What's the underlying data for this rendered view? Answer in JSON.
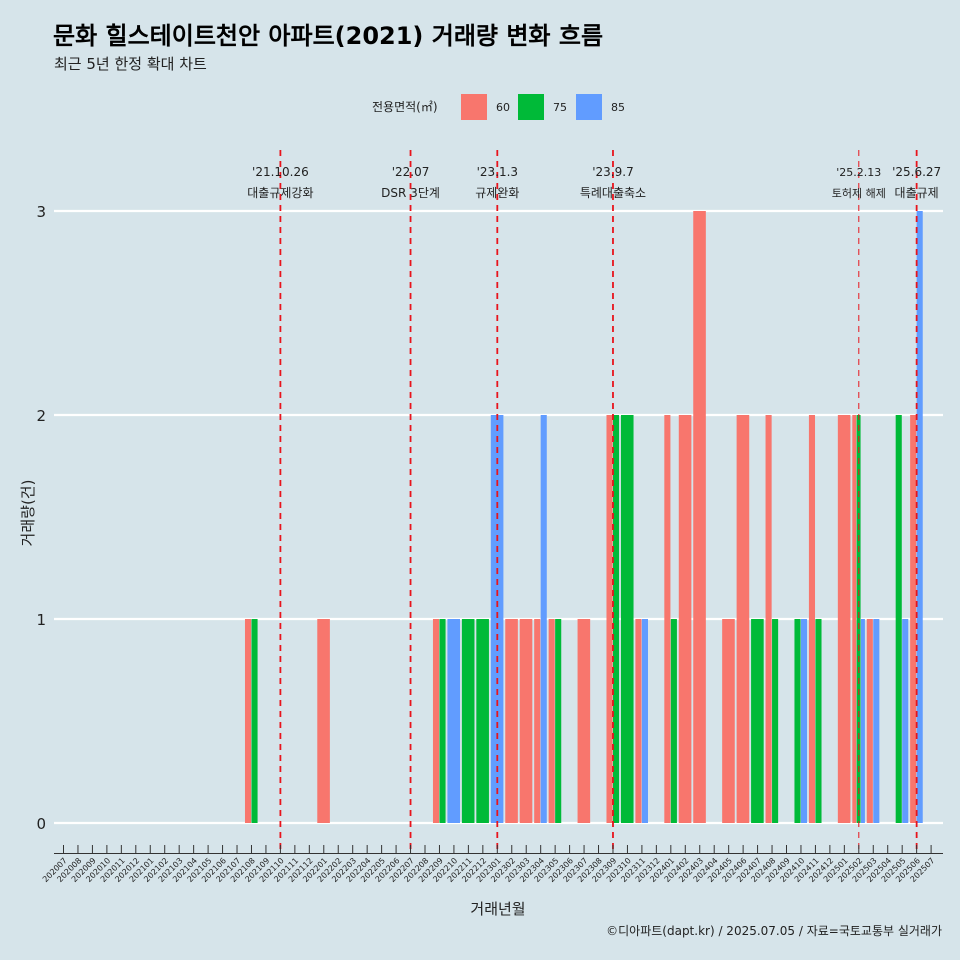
{
  "chart_data": {
    "type": "bar",
    "title": "문화 힐스테이트천안 아파트(2021) 거래량 변화 흐름",
    "subtitle": "최근 5년 한정 확대 차트",
    "xlabel": "거래년월",
    "ylabel": "거래량(건)",
    "caption": "©디아파트(dapt.kr) / 2025.07.05 / 자료=국토교통부 실거래가",
    "legend_title": "전용면적(㎡)",
    "legend_position": "top",
    "ylim": [
      0,
      3
    ],
    "yticks": [
      0,
      1,
      2,
      3
    ],
    "grid": true,
    "categories": [
      "202007",
      "202008",
      "202009",
      "202010",
      "202011",
      "202012",
      "202101",
      "202102",
      "202103",
      "202104",
      "202105",
      "202106",
      "202107",
      "202108",
      "202109",
      "202110",
      "202111",
      "202112",
      "202201",
      "202202",
      "202203",
      "202204",
      "202205",
      "202206",
      "202207",
      "202208",
      "202209",
      "202210",
      "202211",
      "202212",
      "202301",
      "202302",
      "202303",
      "202304",
      "202305",
      "202306",
      "202307",
      "202308",
      "202309",
      "202310",
      "202311",
      "202312",
      "202401",
      "202402",
      "202403",
      "202404",
      "202405",
      "202406",
      "202407",
      "202408",
      "202409",
      "202410",
      "202411",
      "202412",
      "202501",
      "202502",
      "202503",
      "202504",
      "202505",
      "202506",
      "202507"
    ],
    "series": [
      {
        "name": "60",
        "color": "#f8766d",
        "values": [
          0,
          0,
          0,
          0,
          0,
          0,
          0,
          0,
          0,
          0,
          0,
          0,
          0,
          1,
          0,
          0,
          0,
          0,
          1,
          0,
          0,
          0,
          0,
          0,
          0,
          0,
          1,
          0,
          0,
          0,
          0,
          1,
          1,
          1,
          1,
          0,
          1,
          0,
          2,
          0,
          1,
          0,
          2,
          2,
          3,
          0,
          1,
          2,
          0,
          2,
          0,
          0,
          2,
          0,
          2,
          2,
          1,
          0,
          0,
          2,
          0
        ]
      },
      {
        "name": "75",
        "color": "#00ba38",
        "values": [
          0,
          0,
          0,
          0,
          0,
          0,
          0,
          0,
          0,
          0,
          0,
          0,
          0,
          1,
          0,
          0,
          0,
          0,
          0,
          0,
          0,
          0,
          0,
          0,
          0,
          0,
          1,
          0,
          1,
          1,
          0,
          0,
          0,
          0,
          1,
          0,
          0,
          0,
          2,
          2,
          0,
          0,
          1,
          0,
          0,
          0,
          0,
          0,
          1,
          1,
          0,
          1,
          1,
          0,
          0,
          2,
          0,
          0,
          2,
          0,
          0
        ]
      },
      {
        "name": "85",
        "color": "#619cff",
        "values": [
          0,
          0,
          0,
          0,
          0,
          0,
          0,
          0,
          0,
          0,
          0,
          0,
          0,
          0,
          0,
          0,
          0,
          0,
          0,
          0,
          0,
          0,
          0,
          0,
          0,
          0,
          0,
          1,
          0,
          0,
          2,
          0,
          0,
          2,
          0,
          0,
          0,
          0,
          0,
          0,
          1,
          0,
          0,
          0,
          0,
          0,
          0,
          0,
          0,
          0,
          0,
          1,
          0,
          0,
          0,
          1,
          1,
          0,
          1,
          3,
          0
        ]
      }
    ],
    "annotations": [
      {
        "month": "202110",
        "line1": "'21.10.26",
        "line2": "대출규제강화",
        "style": "bold"
      },
      {
        "month": "202207",
        "line1": "'22.07",
        "line2": "DSR 3단계",
        "style": "bold"
      },
      {
        "month": "202301",
        "line1": "'23.1.3",
        "line2": "규제완화",
        "style": "bold"
      },
      {
        "month": "202309",
        "line1": "'23.9.7",
        "line2": "특례대출축소",
        "style": "bold"
      },
      {
        "month": "202502",
        "line1": "'25.2.13",
        "line2": "토허제 해제",
        "style": "thin"
      },
      {
        "month": "202506",
        "line1": "'25.6.27",
        "line2": "대출규제",
        "style": "bold"
      }
    ]
  }
}
